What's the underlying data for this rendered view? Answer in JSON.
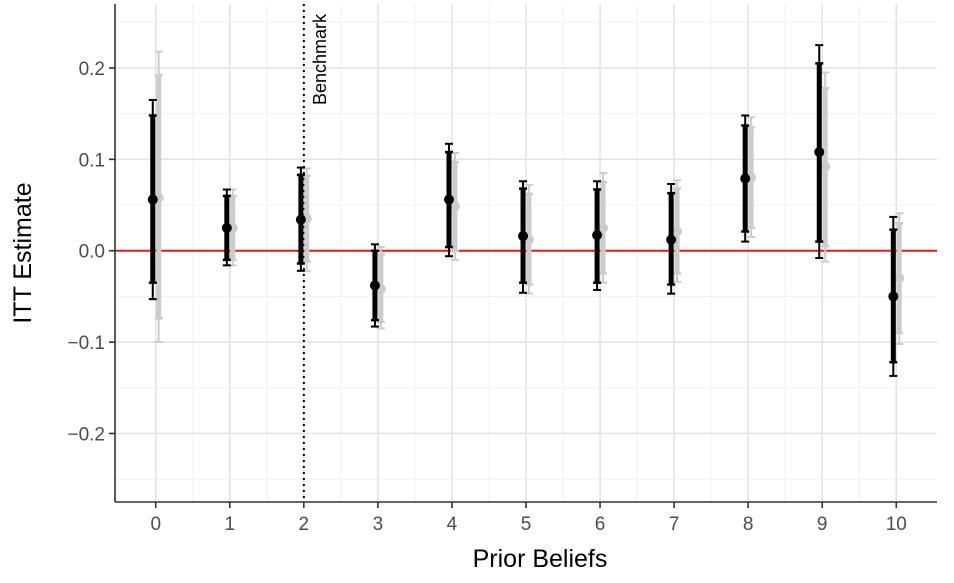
{
  "chart_data": {
    "type": "errorbar",
    "xlabel": "Prior Beliefs",
    "ylabel": "ITT Estimate",
    "x_ticks": [
      "0",
      "1",
      "2",
      "3",
      "4",
      "5",
      "6",
      "7",
      "8",
      "9",
      "10"
    ],
    "y_ticks": [
      {
        "value": 0.2,
        "label": "0.2"
      },
      {
        "value": 0.1,
        "label": "0.1"
      },
      {
        "value": 0.0,
        "label": "0.0"
      },
      {
        "value": -0.1,
        "label": "−0.1"
      },
      {
        "value": -0.2,
        "label": "−0.2"
      }
    ],
    "xlim": [
      -0.55,
      10.55
    ],
    "ylim": [
      -0.275,
      0.27
    ],
    "reference_line": {
      "y": 0,
      "color": "#e41a1c"
    },
    "benchmark": {
      "x": 2,
      "label": "Benchmark",
      "style": "dotted"
    },
    "grid": true,
    "series": [
      {
        "color": "#000000",
        "offset": -0.04,
        "points": [
          {
            "x": 0,
            "y": 0.056,
            "ci90": [
              -0.035,
              0.148
            ],
            "ci95": [
              -0.053,
              0.165
            ]
          },
          {
            "x": 1,
            "y": 0.025,
            "ci90": [
              -0.01,
              0.06
            ],
            "ci95": [
              -0.016,
              0.067
            ]
          },
          {
            "x": 2,
            "y": 0.034,
            "ci90": [
              -0.014,
              0.083
            ],
            "ci95": [
              -0.022,
              0.091
            ]
          },
          {
            "x": 3,
            "y": -0.038,
            "ci90": [
              -0.076,
              0.0
            ],
            "ci95": [
              -0.083,
              0.007
            ]
          },
          {
            "x": 4,
            "y": 0.056,
            "ci90": [
              0.004,
              0.108
            ],
            "ci95": [
              -0.006,
              0.117
            ]
          },
          {
            "x": 5,
            "y": 0.016,
            "ci90": [
              -0.035,
              0.068
            ],
            "ci95": [
              -0.046,
              0.076
            ]
          },
          {
            "x": 6,
            "y": 0.017,
            "ci90": [
              -0.035,
              0.067
            ],
            "ci95": [
              -0.043,
              0.076
            ]
          },
          {
            "x": 7,
            "y": 0.012,
            "ci90": [
              -0.037,
              0.063
            ],
            "ci95": [
              -0.047,
              0.073
            ]
          },
          {
            "x": 8,
            "y": 0.079,
            "ci90": [
              0.021,
              0.137
            ],
            "ci95": [
              0.01,
              0.148
            ]
          },
          {
            "x": 9,
            "y": 0.108,
            "ci90": [
              0.01,
              0.205
            ],
            "ci95": [
              -0.008,
              0.225
            ]
          },
          {
            "x": 10,
            "y": -0.05,
            "ci90": [
              -0.122,
              0.023
            ],
            "ci95": [
              -0.137,
              0.037
            ]
          }
        ]
      },
      {
        "color": "#cccccc",
        "offset": 0.04,
        "points": [
          {
            "x": 0,
            "y": 0.058,
            "ci90": [
              -0.074,
              0.192
            ],
            "ci95": [
              -0.1,
              0.218
            ]
          },
          {
            "x": 1,
            "y": 0.025,
            "ci90": [
              -0.01,
              0.06
            ],
            "ci95": [
              -0.016,
              0.067
            ]
          },
          {
            "x": 2,
            "y": 0.035,
            "ci90": [
              -0.012,
              0.082
            ],
            "ci95": [
              -0.022,
              0.09
            ]
          },
          {
            "x": 3,
            "y": -0.042,
            "ci90": [
              -0.078,
              -0.004
            ],
            "ci95": [
              -0.085,
              0.004
            ]
          },
          {
            "x": 4,
            "y": 0.049,
            "ci90": [
              0.0,
              0.097
            ],
            "ci95": [
              -0.01,
              0.107
            ]
          },
          {
            "x": 5,
            "y": 0.012,
            "ci90": [
              -0.037,
              0.062
            ],
            "ci95": [
              -0.047,
              0.072
            ]
          },
          {
            "x": 6,
            "y": 0.025,
            "ci90": [
              -0.025,
              0.075
            ],
            "ci95": [
              -0.035,
              0.085
            ]
          },
          {
            "x": 7,
            "y": 0.021,
            "ci90": [
              -0.025,
              0.068
            ],
            "ci95": [
              -0.034,
              0.077
            ]
          },
          {
            "x": 8,
            "y": 0.08,
            "ci90": [
              0.025,
              0.135
            ],
            "ci95": [
              0.015,
              0.146
            ]
          },
          {
            "x": 9,
            "y": 0.092,
            "ci90": [
              0.005,
              0.178
            ],
            "ci95": [
              -0.012,
              0.195
            ]
          },
          {
            "x": 10,
            "y": -0.03,
            "ci90": [
              -0.09,
              0.03
            ],
            "ci95": [
              -0.102,
              0.041
            ]
          }
        ]
      }
    ]
  }
}
